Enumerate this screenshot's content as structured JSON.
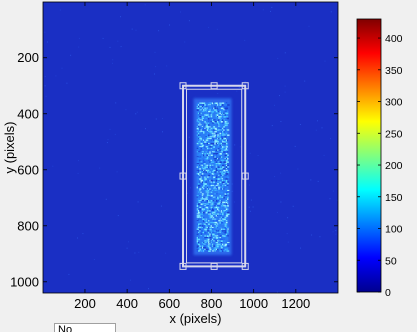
{
  "figure": {
    "background": "#f0f0f0",
    "image_background": "#1a2fc4",
    "roi_color": "#d8d8ec"
  },
  "chart_data": {
    "type": "heatmap",
    "title": "",
    "xlabel": "x  (pixels)",
    "ylabel": "y  (pixels)",
    "xlim": [
      1,
      1400
    ],
    "ylim": [
      1,
      1040
    ],
    "y_reversed": true,
    "x_ticks": [
      200,
      400,
      600,
      800,
      1000,
      1200
    ],
    "y_ticks": [
      200,
      400,
      600,
      800,
      1000
    ],
    "colormap": "jet",
    "colorbar": {
      "range": [
        0,
        430
      ],
      "ticks": [
        0,
        50,
        100,
        150,
        200,
        250,
        300,
        350,
        400
      ]
    },
    "roi_rectangle": {
      "x_range": [
        665,
        960
      ],
      "y_range": [
        300,
        945
      ],
      "handles": "corners-and-edge-midpoints"
    },
    "signal_region": {
      "x_range": [
        730,
        880
      ],
      "y_range": [
        360,
        890
      ],
      "approx_level": 150
    }
  },
  "ui": {
    "combo_value": "No"
  }
}
